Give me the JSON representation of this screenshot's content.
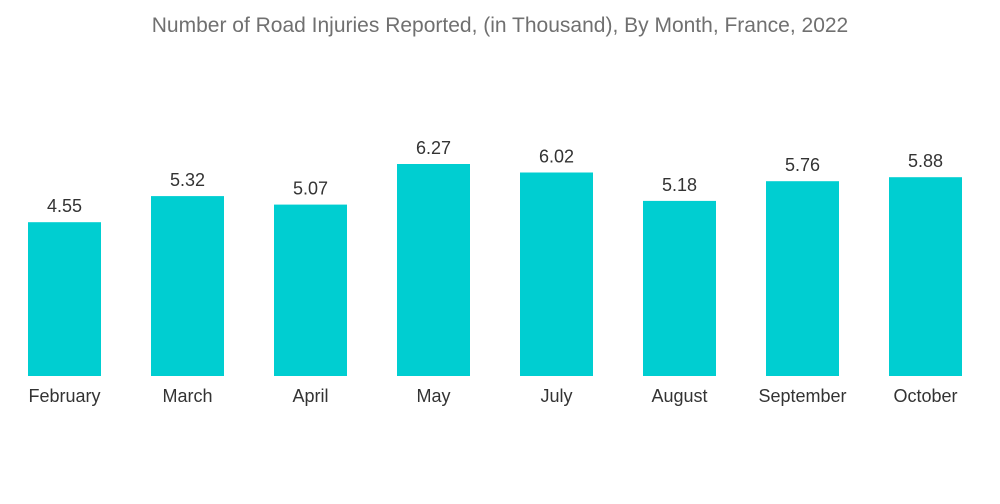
{
  "chart_data": {
    "type": "bar",
    "title": "Number of Road Injuries Reported, (in Thousand), By Month, France, 2022",
    "categories": [
      "February",
      "March",
      "April",
      "May",
      "July",
      "August",
      "September",
      "October"
    ],
    "values": [
      4.55,
      5.32,
      5.07,
      6.27,
      6.02,
      5.18,
      5.76,
      5.88
    ],
    "value_labels": [
      "4.55",
      "5.32",
      "5.07",
      "6.27",
      "6.02",
      "5.18",
      "5.76",
      "5.88"
    ],
    "xlabel": "",
    "ylabel": "",
    "ylim": [
      0,
      6.27
    ],
    "grid": false,
    "legend": "none",
    "bar_color": "#00CED1"
  }
}
